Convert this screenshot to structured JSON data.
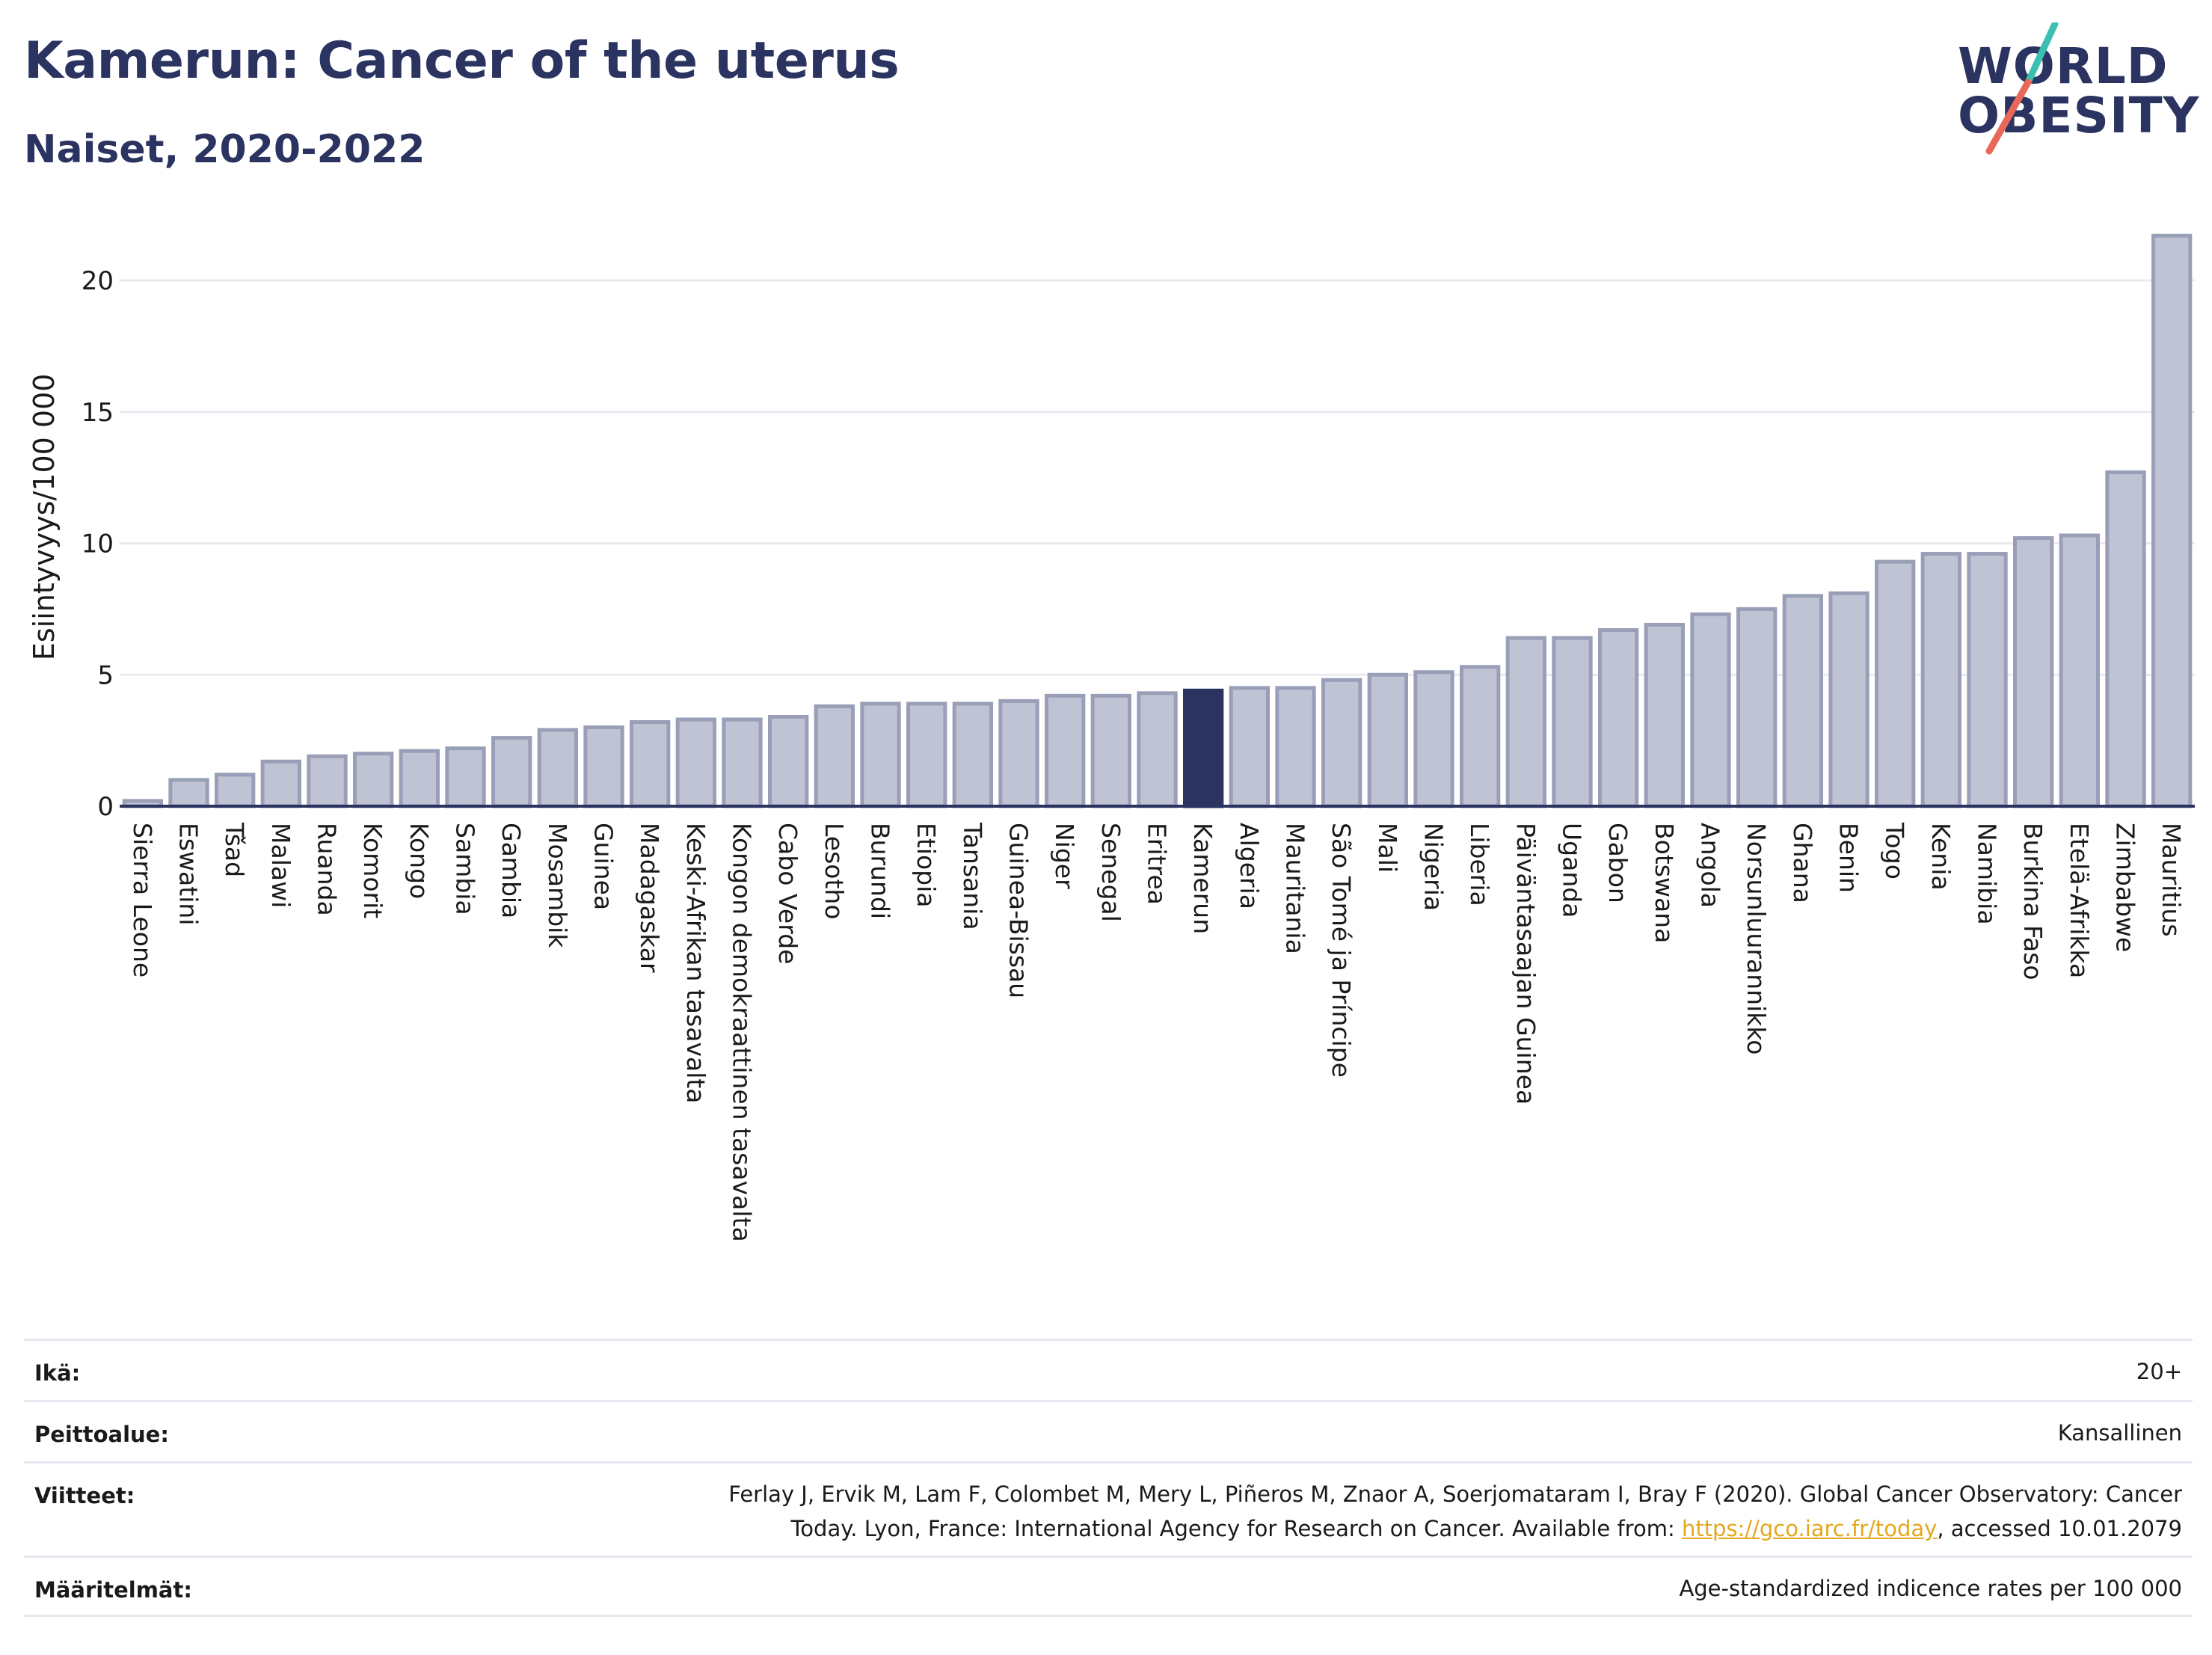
{
  "header": {
    "title": "Kamerun: Cancer of the uterus",
    "subtitle": "Naiset, 2020-2022"
  },
  "logo": {
    "line1": "WORLD",
    "line2": "OBESITY",
    "slash_colors": [
      "#3bbfb0",
      "#e8685a"
    ]
  },
  "colors": {
    "bar": "#bfc3d3",
    "bar_border": "#9a9fb8",
    "highlight": "#2b3460",
    "grid": "#e8eaf0",
    "axis": "#2b3460"
  },
  "chart_data": {
    "type": "bar",
    "ylabel": "Esiintyvyys/100 000",
    "ylim": [
      0,
      22
    ],
    "yticks": [
      0,
      5,
      10,
      15,
      20
    ],
    "highlight": "Kamerun",
    "grid": "horizontal",
    "categories": [
      "Sierra Leone",
      "Eswatini",
      "Tšad",
      "Malawi",
      "Ruanda",
      "Komorit",
      "Kongo",
      "Sambia",
      "Gambia",
      "Mosambik",
      "Guinea",
      "Madagaskar",
      "Keski-Afrikan tasavalta",
      "Kongon demokraattinen tasavalta",
      "Cabo Verde",
      "Lesotho",
      "Burundi",
      "Etiopia",
      "Tansania",
      "Guinea-Bissau",
      "Niger",
      "Senegal",
      "Eritrea",
      "Kamerun",
      "Algeria",
      "Mauritania",
      "São Tomé ja Príncipe",
      "Mali",
      "Nigeria",
      "Liberia",
      "Päiväntasaajan Guinea",
      "Uganda",
      "Gabon",
      "Botswana",
      "Angola",
      "Norsunluurannikko",
      "Ghana",
      "Benin",
      "Togo",
      "Kenia",
      "Namibia",
      "Burkina Faso",
      "Etelä-Afrikka",
      "Zimbabwe",
      "Mauritius"
    ],
    "values": [
      0.2,
      1.0,
      1.2,
      1.7,
      1.9,
      2.0,
      2.1,
      2.2,
      2.6,
      2.9,
      3.0,
      3.2,
      3.3,
      3.3,
      3.4,
      3.8,
      3.9,
      3.9,
      3.9,
      4.0,
      4.2,
      4.2,
      4.3,
      4.4,
      4.5,
      4.5,
      4.8,
      5.0,
      5.1,
      5.3,
      6.4,
      6.4,
      6.7,
      6.9,
      7.3,
      7.5,
      8.0,
      8.1,
      9.3,
      9.6,
      9.6,
      10.2,
      10.3,
      12.7,
      21.7
    ]
  },
  "meta": {
    "age_label": "Ikä:",
    "age_value": "20+",
    "coverage_label": "Peittoalue:",
    "coverage_value": "Kansallinen",
    "refs_label": "Viitteet:",
    "refs_line1": "Ferlay J, Ervik M, Lam F, Colombet M, Mery L, Piñeros M, Znaor A, Soerjomataram I, Bray F (2020). Global Cancer Observatory: Cancer",
    "refs_line2_pre": "Today. Lyon, France: International Agency for Research on Cancer. Available from: ",
    "refs_link": "https://gco.iarc.fr/today",
    "refs_line2_post": ", accessed 10.01.2079",
    "defs_label": "Määritelmät:",
    "defs_value": "Age-standardized indicence rates per 100 000"
  }
}
